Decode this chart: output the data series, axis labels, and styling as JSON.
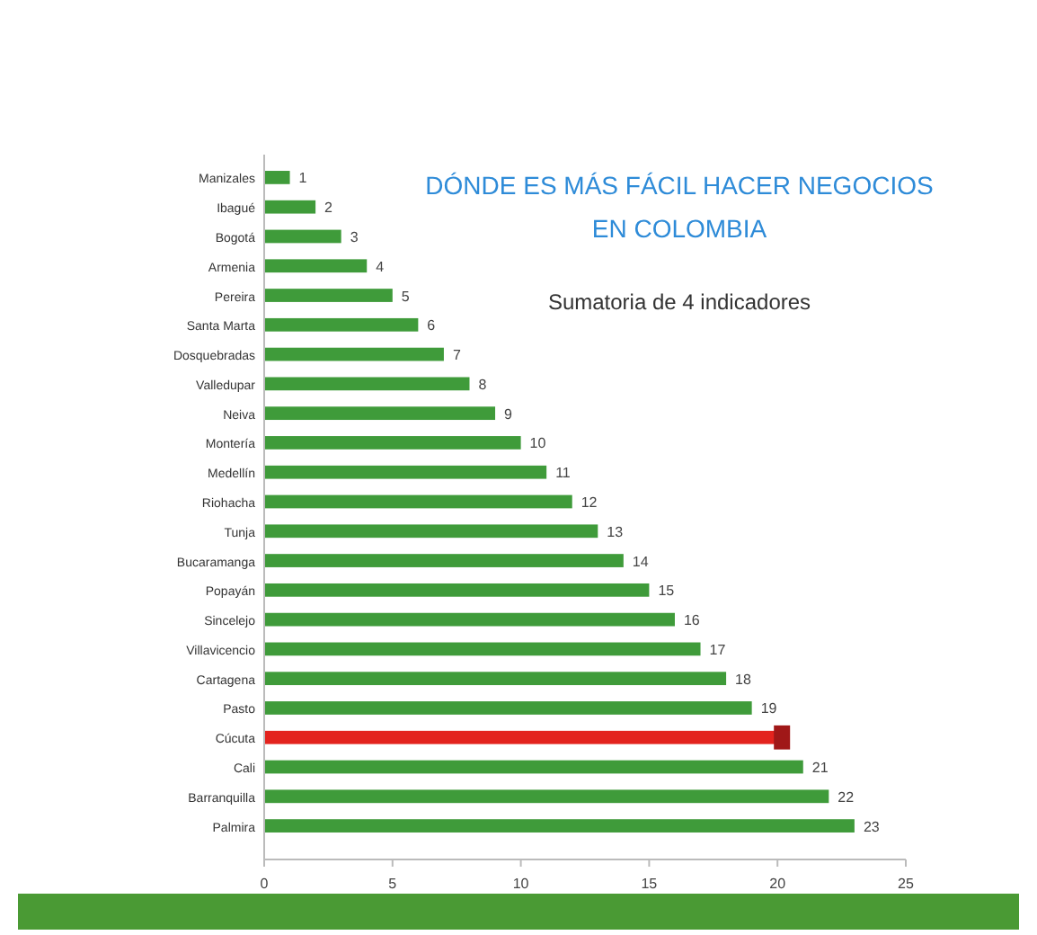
{
  "chart_data": {
    "type": "bar",
    "orientation": "horizontal",
    "title": "DÓNDE ES MÁS FÁCIL HACER NEGOCIOS EN COLOMBIA",
    "subtitle": "Sumatoria de 4 indicadores",
    "categories": [
      "Manizales",
      "Ibagué",
      "Bogotá",
      "Armenia",
      "Pereira",
      "Santa Marta",
      "Dosquebradas",
      "Valledupar",
      "Neiva",
      "Montería",
      "Medellín",
      "Riohacha",
      "Tunja",
      "Bucaramanga",
      "Popayán",
      "Sincelejo",
      "Villavicencio",
      "Cartagena",
      "Pasto",
      "Cúcuta",
      "Cali",
      "Barranquilla",
      "Palmira"
    ],
    "values": [
      1,
      2,
      3,
      4,
      5,
      6,
      7,
      8,
      9,
      10,
      11,
      12,
      13,
      14,
      15,
      16,
      17,
      18,
      19,
      20,
      21,
      22,
      23
    ],
    "colors": [
      "#3f9b3a",
      "#3f9b3a",
      "#3f9b3a",
      "#3f9b3a",
      "#3f9b3a",
      "#3f9b3a",
      "#3f9b3a",
      "#3f9b3a",
      "#3f9b3a",
      "#3f9b3a",
      "#3f9b3a",
      "#3f9b3a",
      "#3f9b3a",
      "#3f9b3a",
      "#3f9b3a",
      "#3f9b3a",
      "#3f9b3a",
      "#3f9b3a",
      "#3f9b3a",
      "#e3231e",
      "#3f9b3a",
      "#3f9b3a",
      "#3f9b3a"
    ],
    "value_labels": [
      "1",
      "2",
      "3",
      "4",
      "5",
      "6",
      "7",
      "8",
      "9",
      "10",
      "11",
      "12",
      "13",
      "14",
      "15",
      "16",
      "17",
      "18",
      "19",
      null,
      "21",
      "22",
      "23"
    ],
    "xlim": [
      0,
      25
    ],
    "xticks": [
      0,
      5,
      10,
      15,
      20,
      25
    ]
  }
}
